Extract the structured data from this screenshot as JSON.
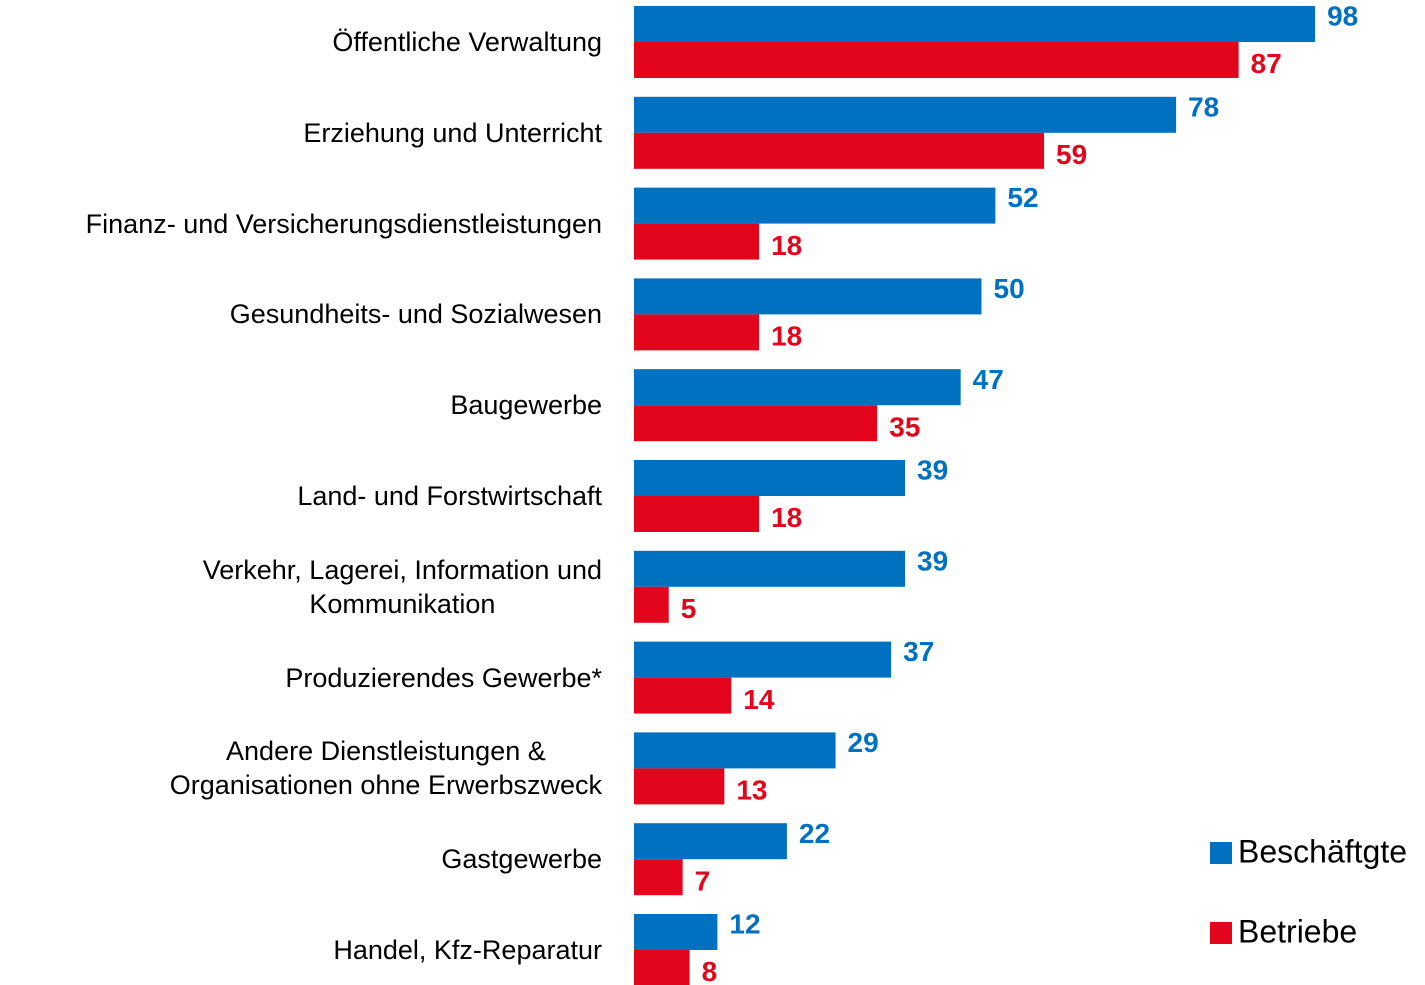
{
  "chart_data": {
    "type": "hbar",
    "categories": [
      "Öffentliche Verwaltung",
      "Erziehung und Unterricht",
      "Finanz- und Versicherungsdienstleistungen",
      "Gesundheits- und Sozialwesen",
      "Baugewerbe",
      "Land- und Forstwirtschaft",
      "Verkehr, Lagerei, Information und\nKommunikation",
      "Produzierendes Gewerbe*",
      "Andere Dienstleistungen &\nOrganisationen ohne Erwerbszweck",
      "Gastgewerbe",
      "Handel, Kfz-Reparatur"
    ],
    "series": [
      {
        "name": "Beschäftgte",
        "color": "#0070c0",
        "values": [
          98,
          78,
          52,
          50,
          47,
          39,
          39,
          37,
          29,
          22,
          12
        ]
      },
      {
        "name": "Betriebe",
        "color": "#e3051b",
        "values": [
          87,
          59,
          18,
          18,
          35,
          18,
          5,
          14,
          13,
          7,
          8
        ]
      }
    ],
    "xlim": [
      0,
      100
    ],
    "legend": "bottom-right"
  }
}
